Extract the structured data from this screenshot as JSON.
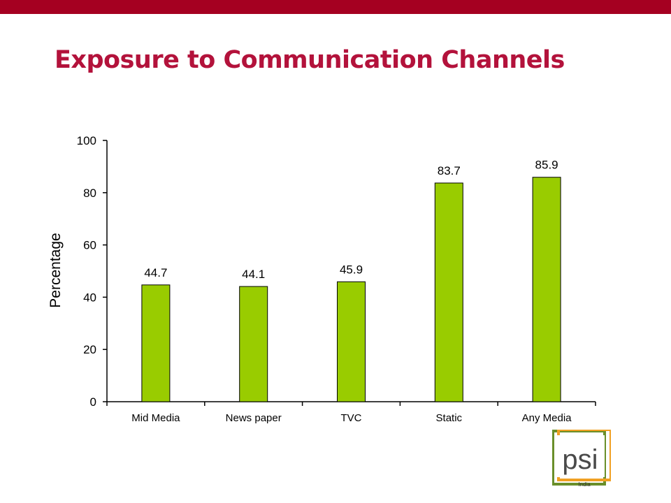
{
  "slide": {
    "title": "Exposure to Communication Channels"
  },
  "chart_data": {
    "type": "bar",
    "categories": [
      "Mid Media",
      "News paper",
      "TVC",
      "Static",
      "Any Media"
    ],
    "values": [
      44.7,
      44.1,
      45.9,
      83.7,
      85.9
    ],
    "data_labels": [
      "44.7",
      "44.1",
      "45.9",
      "83.7",
      "85.9"
    ],
    "ylabel": "Percentage",
    "xlabel": "",
    "ylim": [
      0,
      100
    ],
    "yticks": [
      0,
      20,
      40,
      60,
      80,
      100
    ],
    "bar_color": "#99cc00",
    "grid": false
  },
  "logo": {
    "text": "psi",
    "subtext": "India",
    "colors": {
      "green": "#6a8f2a",
      "orange": "#f0a022"
    }
  },
  "colors": {
    "accent_bar": "#a50021",
    "title": "#b3123b"
  }
}
